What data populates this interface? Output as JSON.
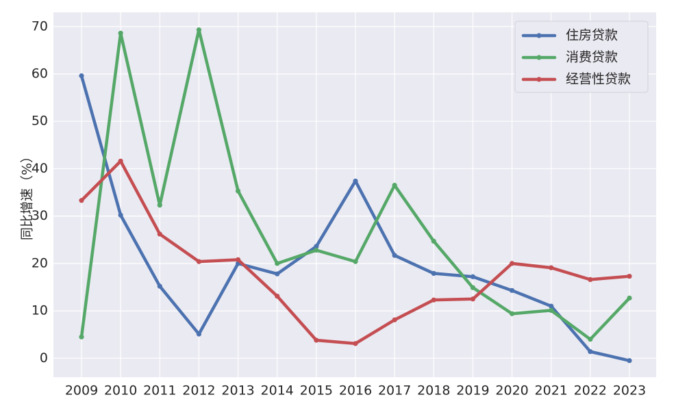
{
  "chart_data": {
    "type": "line",
    "title": "",
    "xlabel": "",
    "ylabel": "同比增速（%）",
    "x": [
      2009,
      2010,
      2011,
      2012,
      2013,
      2014,
      2015,
      2016,
      2017,
      2018,
      2019,
      2020,
      2021,
      2022,
      2023
    ],
    "ylim": [
      -4,
      73
    ],
    "yticks": [
      0,
      10,
      20,
      30,
      40,
      50,
      60,
      70
    ],
    "grid": true,
    "legend_position": "top-right",
    "series": [
      {
        "name": "住房贷款",
        "color": "#4c72b0",
        "values": [
          59.6,
          30.2,
          15.2,
          5.1,
          20.0,
          17.8,
          23.6,
          37.4,
          21.7,
          17.9,
          17.2,
          14.3,
          11.0,
          1.4,
          -0.5
        ]
      },
      {
        "name": "消费贷款",
        "color": "#55a868",
        "values": [
          4.5,
          68.6,
          32.3,
          69.3,
          35.3,
          20.0,
          22.8,
          20.4,
          36.5,
          24.7,
          14.9,
          9.4,
          10.1,
          4.0,
          12.7
        ]
      },
      {
        "name": "经营性贷款",
        "color": "#c44e52",
        "values": [
          33.3,
          41.6,
          26.2,
          20.4,
          20.8,
          13.1,
          3.8,
          3.1,
          8.1,
          12.3,
          12.5,
          20.0,
          19.1,
          16.6,
          17.3
        ]
      }
    ]
  }
}
